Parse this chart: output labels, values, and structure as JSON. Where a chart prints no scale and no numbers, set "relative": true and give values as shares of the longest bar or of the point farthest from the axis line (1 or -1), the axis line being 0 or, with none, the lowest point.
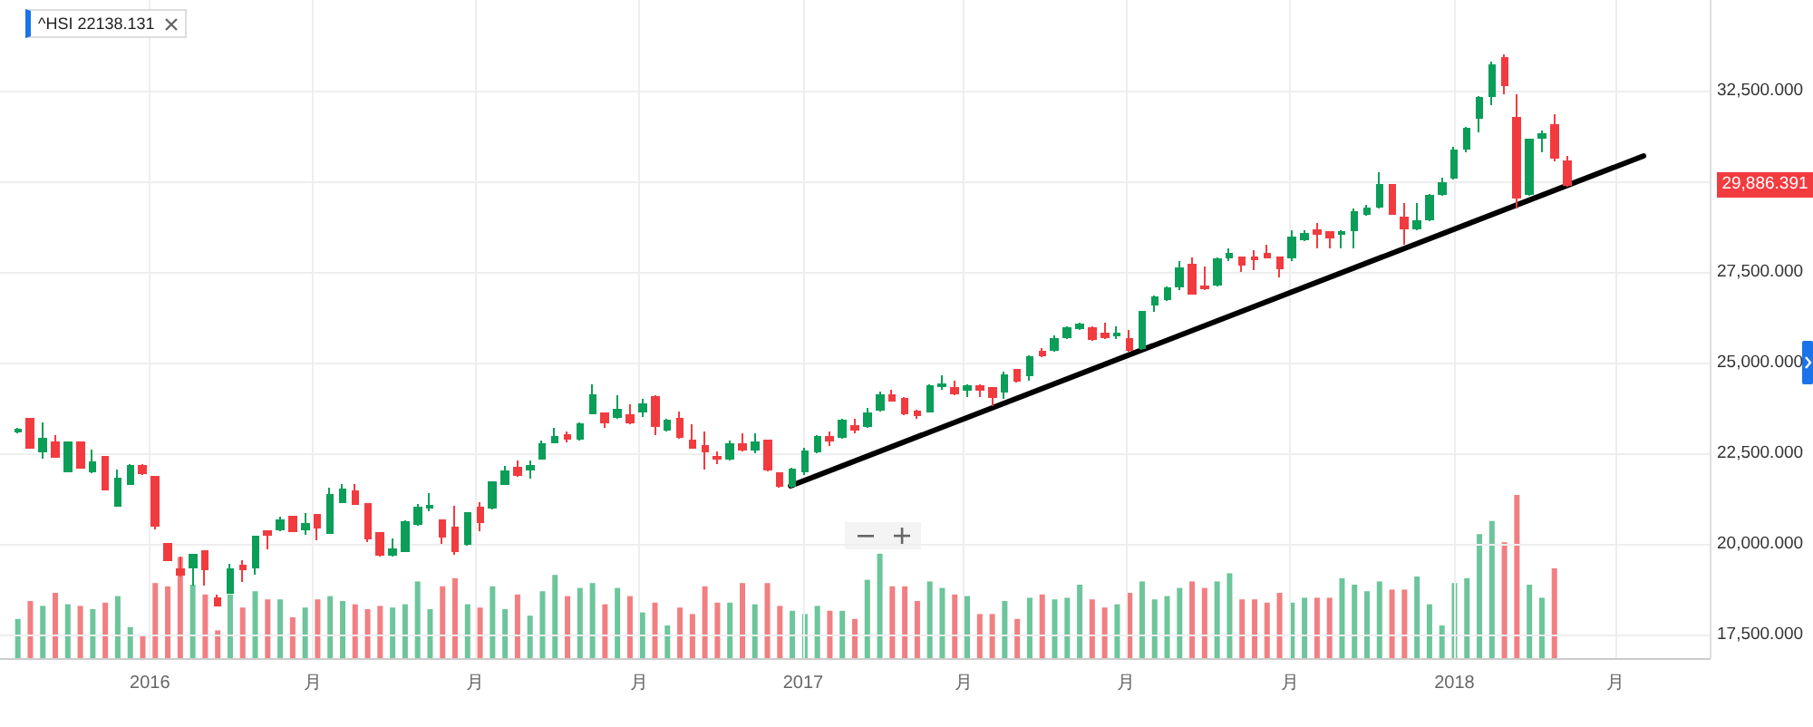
{
  "chart_data": [
    {
      "type": "candlestick",
      "x": [
        "2015-10-19",
        "2015-10-26",
        "2015-11-02",
        "2015-11-09",
        "2015-11-16",
        "2015-11-23",
        "2015-11-30",
        "2015-12-07",
        "2015-12-14",
        "2015-12-21",
        "2015-12-28",
        "2016-01-04",
        "2016-01-11",
        "2016-01-18",
        "2016-01-25",
        "2016-02-01",
        "2016-02-08",
        "2016-02-15",
        "2016-02-22",
        "2016-02-29",
        "2016-03-07",
        "2016-03-14",
        "2016-03-21",
        "2016-03-28",
        "2016-04-04",
        "2016-04-11",
        "2016-04-18",
        "2016-04-25",
        "2016-05-02",
        "2016-05-09",
        "2016-05-16",
        "2016-05-23",
        "2016-05-30",
        "2016-06-06",
        "2016-06-13",
        "2016-06-20",
        "2016-06-27",
        "2016-07-04",
        "2016-07-11",
        "2016-07-18",
        "2016-07-25",
        "2016-08-01",
        "2016-08-08",
        "2016-08-15",
        "2016-08-22",
        "2016-08-29",
        "2016-09-05",
        "2016-09-12",
        "2016-09-19",
        "2016-09-26",
        "2016-10-03",
        "2016-10-10",
        "2016-10-17",
        "2016-10-24",
        "2016-10-31",
        "2016-11-07",
        "2016-11-14",
        "2016-11-21",
        "2016-11-28",
        "2016-12-05",
        "2016-12-12",
        "2016-12-19",
        "2016-12-26",
        "2017-01-02",
        "2017-01-09",
        "2017-01-16",
        "2017-01-23",
        "2017-01-30",
        "2017-02-06",
        "2017-02-13",
        "2017-02-20",
        "2017-02-27",
        "2017-03-06",
        "2017-03-13",
        "2017-03-20",
        "2017-03-27",
        "2017-04-03",
        "2017-04-10",
        "2017-04-17",
        "2017-04-24",
        "2017-05-01",
        "2017-05-08",
        "2017-05-15",
        "2017-05-22",
        "2017-05-29",
        "2017-06-05",
        "2017-06-12",
        "2017-06-19",
        "2017-06-26",
        "2017-07-03",
        "2017-07-10",
        "2017-07-17",
        "2017-07-24",
        "2017-07-31",
        "2017-08-07",
        "2017-08-14",
        "2017-08-21",
        "2017-08-28",
        "2017-09-04",
        "2017-09-11",
        "2017-09-18",
        "2017-09-25",
        "2017-10-02",
        "2017-10-09",
        "2017-10-16",
        "2017-10-23",
        "2017-10-30",
        "2017-11-06",
        "2017-11-13",
        "2017-11-20",
        "2017-11-27",
        "2017-12-04",
        "2017-12-11",
        "2017-12-18",
        "2017-12-25",
        "2018-01-01",
        "2018-01-08",
        "2018-01-15",
        "2018-01-22",
        "2018-01-29",
        "2018-02-05",
        "2018-02-12",
        "2018-02-19",
        "2018-02-26",
        "2018-03-05"
      ],
      "ohlc": [
        [
          23100,
          23200,
          23050,
          23150
        ],
        [
          23450,
          23450,
          22650,
          22650
        ],
        [
          22550,
          23350,
          22350,
          22900
        ],
        [
          22800,
          23000,
          22400,
          22400
        ],
        [
          22000,
          22800,
          22000,
          22800
        ],
        [
          22800,
          22800,
          22100,
          22100
        ],
        [
          22000,
          22600,
          21950,
          22250
        ],
        [
          22400,
          22400,
          21500,
          21500
        ],
        [
          21050,
          22050,
          21050,
          21800
        ],
        [
          21650,
          22200,
          21650,
          22150
        ],
        [
          22150,
          22200,
          21900,
          21950
        ],
        [
          21850,
          21850,
          20400,
          20500
        ],
        [
          20000,
          20000,
          19550,
          19550
        ],
        [
          19300,
          19650,
          19100,
          19150
        ],
        [
          19350,
          19700,
          18850,
          19700
        ],
        [
          19800,
          19800,
          18850,
          19300
        ],
        [
          18500,
          18600,
          18300,
          18300
        ],
        [
          18650,
          19450,
          18650,
          19300
        ],
        [
          19400,
          19550,
          18950,
          19300
        ],
        [
          19350,
          20200,
          19150,
          20200
        ],
        [
          20350,
          20350,
          19850,
          20250
        ],
        [
          20400,
          20750,
          20350,
          20650
        ],
        [
          20750,
          20750,
          20350,
          20350
        ],
        [
          20400,
          20850,
          20250,
          20550
        ],
        [
          20800,
          20800,
          20100,
          20450
        ],
        [
          20300,
          21550,
          20300,
          21350
        ],
        [
          21150,
          21650,
          21150,
          21500
        ],
        [
          21450,
          21650,
          21100,
          21100
        ],
        [
          21100,
          21100,
          20050,
          20150
        ],
        [
          20300,
          20300,
          19650,
          19700
        ],
        [
          19700,
          20150,
          19650,
          19850
        ],
        [
          19800,
          20650,
          19800,
          20600
        ],
        [
          20550,
          21100,
          20500,
          21000
        ],
        [
          21000,
          21400,
          20900,
          21050
        ],
        [
          20650,
          20650,
          20000,
          20200
        ],
        [
          20450,
          21050,
          19700,
          19800
        ],
        [
          20000,
          20850,
          19950,
          20850
        ],
        [
          21000,
          21150,
          20350,
          20600
        ],
        [
          21000,
          21700,
          20950,
          21700
        ],
        [
          21650,
          22150,
          21650,
          22000
        ],
        [
          22100,
          22300,
          21850,
          21900
        ],
        [
          22050,
          22300,
          21800,
          22150
        ],
        [
          22350,
          22850,
          22350,
          22750
        ],
        [
          22800,
          23200,
          22800,
          22950
        ],
        [
          23000,
          23100,
          22800,
          22900
        ],
        [
          22900,
          23350,
          22850,
          23300
        ],
        [
          23600,
          24400,
          23600,
          24100
        ],
        [
          23600,
          23600,
          23200,
          23350
        ],
        [
          23500,
          24100,
          23450,
          23700
        ],
        [
          23550,
          23850,
          23300,
          23350
        ],
        [
          23650,
          24000,
          23500,
          23850
        ],
        [
          24050,
          24100,
          23000,
          23250
        ],
        [
          23150,
          23450,
          23100,
          23400
        ],
        [
          23450,
          23650,
          22900,
          22950
        ],
        [
          22850,
          23300,
          22650,
          22650
        ],
        [
          22700,
          23100,
          22050,
          22550
        ],
        [
          22400,
          22550,
          22200,
          22350
        ],
        [
          22350,
          22850,
          22300,
          22750
        ],
        [
          22750,
          23050,
          22550,
          22600
        ],
        [
          22600,
          23050,
          22500,
          22800
        ],
        [
          22850,
          22850,
          22000,
          22050
        ],
        [
          21950,
          21950,
          21550,
          21600
        ],
        [
          21600,
          22100,
          21550,
          22050
        ],
        [
          22000,
          22650,
          21900,
          22550
        ],
        [
          22550,
          23000,
          22500,
          22950
        ],
        [
          22950,
          23100,
          22700,
          22850
        ],
        [
          22950,
          23450,
          22900,
          23400
        ],
        [
          23250,
          23450,
          23050,
          23150
        ],
        [
          23250,
          23750,
          23200,
          23600
        ],
        [
          23700,
          24200,
          23650,
          24100
        ],
        [
          24100,
          24250,
          23950,
          23950
        ],
        [
          24000,
          24050,
          23550,
          23600
        ],
        [
          23650,
          23700,
          23450,
          23550
        ],
        [
          23650,
          24400,
          23650,
          24350
        ],
        [
          24350,
          24650,
          24250,
          24400
        ],
        [
          24300,
          24500,
          24100,
          24150
        ],
        [
          24250,
          24400,
          24050,
          24350
        ],
        [
          24350,
          24400,
          24050,
          24250
        ],
        [
          24300,
          24300,
          23800,
          24050
        ],
        [
          24200,
          24750,
          24000,
          24650
        ],
        [
          24800,
          24800,
          24450,
          24500
        ],
        [
          24650,
          25200,
          24500,
          25150
        ],
        [
          25300,
          25400,
          25150,
          25200
        ],
        [
          25350,
          25750,
          25300,
          25650
        ],
        [
          25700,
          26000,
          25650,
          25950
        ],
        [
          25950,
          26100,
          25900,
          26050
        ],
        [
          25950,
          26000,
          25600,
          25650
        ],
        [
          25800,
          26100,
          25650,
          25700
        ],
        [
          25750,
          26000,
          25650,
          25800
        ],
        [
          25650,
          25900,
          25300,
          25350
        ],
        [
          25400,
          26400,
          25350,
          26400
        ],
        [
          26600,
          26850,
          26400,
          26800
        ],
        [
          26750,
          27100,
          26700,
          27050
        ],
        [
          27100,
          27800,
          27000,
          27600
        ],
        [
          27700,
          27900,
          26900,
          26900
        ],
        [
          27100,
          27650,
          27000,
          27050
        ],
        [
          27150,
          27900,
          27100,
          27850
        ],
        [
          27900,
          28150,
          27800,
          28000
        ],
        [
          27900,
          27900,
          27500,
          27700
        ],
        [
          27900,
          28100,
          27550,
          27850
        ],
        [
          28000,
          28250,
          27900,
          27900
        ],
        [
          27900,
          27900,
          27350,
          27600
        ],
        [
          27900,
          28650,
          27800,
          28450
        ],
        [
          28400,
          28650,
          28350,
          28550
        ],
        [
          28650,
          28850,
          28150,
          28550
        ],
        [
          28600,
          28600,
          28150,
          28450
        ],
        [
          28550,
          28650,
          28150,
          28600
        ],
        [
          28650,
          29250,
          28150,
          29150
        ],
        [
          29100,
          29350,
          29050,
          29250
        ],
        [
          29300,
          30250,
          29250,
          29900
        ],
        [
          29900,
          29900,
          29100,
          29100
        ],
        [
          29000,
          29400,
          28250,
          28700
        ],
        [
          28700,
          29400,
          28650,
          28900
        ],
        [
          28950,
          29650,
          28900,
          29600
        ],
        [
          29650,
          30100,
          29600,
          29950
        ],
        [
          30100,
          30950,
          30050,
          30850
        ],
        [
          30900,
          31500,
          30800,
          31450
        ],
        [
          31750,
          32350,
          31350,
          32300
        ],
        [
          32350,
          33300,
          32100,
          33200
        ],
        [
          33400,
          33500,
          32400,
          32650
        ],
        [
          31750,
          32400,
          29250,
          29550
        ],
        [
          29650,
          31150,
          29600,
          31150
        ],
        [
          31200,
          31400,
          30800,
          31300
        ],
        [
          31550,
          31850,
          30550,
          30650
        ],
        [
          30550,
          30700,
          29850,
          29900
        ]
      ],
      "colors": [
        "#0a9e58",
        "#f23b3f",
        "#0a9e58",
        "#f23b3f",
        "#0a9e58",
        "#f23b3f",
        "#0a9e58",
        "#f23b3f",
        "#0a9e58",
        "#0a9e58",
        "#f23b3f",
        "#f23b3f",
        "#f23b3f",
        "#f23b3f",
        "#0a9e58",
        "#f23b3f",
        "#f23b3f",
        "#0a9e58",
        "#f23b3f",
        "#0a9e58",
        "#f23b3f",
        "#0a9e58",
        "#f23b3f",
        "#0a9e58",
        "#f23b3f",
        "#0a9e58",
        "#0a9e58",
        "#f23b3f",
        "#f23b3f",
        "#f23b3f",
        "#0a9e58",
        "#0a9e58",
        "#0a9e58",
        "#0a9e58",
        "#f23b3f",
        "#f23b3f",
        "#0a9e58",
        "#f23b3f",
        "#0a9e58",
        "#0a9e58",
        "#f23b3f",
        "#0a9e58",
        "#0a9e58",
        "#0a9e58",
        "#f23b3f",
        "#0a9e58",
        "#0a9e58",
        "#f23b3f",
        "#0a9e58",
        "#f23b3f",
        "#0a9e58",
        "#f23b3f",
        "#0a9e58",
        "#f23b3f",
        "#f23b3f",
        "#f23b3f",
        "#f23b3f",
        "#0a9e58",
        "#f23b3f",
        "#0a9e58",
        "#f23b3f",
        "#f23b3f",
        "#0a9e58",
        "#0a9e58",
        "#0a9e58",
        "#f23b3f",
        "#0a9e58",
        "#f23b3f",
        "#0a9e58",
        "#0a9e58",
        "#f23b3f",
        "#f23b3f",
        "#f23b3f",
        "#0a9e58",
        "#0a9e58",
        "#f23b3f",
        "#0a9e58",
        "#f23b3f",
        "#f23b3f",
        "#0a9e58",
        "#f23b3f",
        "#0a9e58",
        "#f23b3f",
        "#0a9e58",
        "#0a9e58",
        "#0a9e58",
        "#f23b3f",
        "#f23b3f",
        "#0a9e58",
        "#f23b3f",
        "#0a9e58",
        "#0a9e58",
        "#0a9e58",
        "#0a9e58",
        "#f23b3f",
        "#f23b3f",
        "#0a9e58",
        "#0a9e58",
        "#f23b3f",
        "#f23b3f",
        "#f23b3f",
        "#f23b3f",
        "#0a9e58",
        "#0a9e58",
        "#f23b3f",
        "#f23b3f",
        "#0a9e58",
        "#0a9e58",
        "#0a9e58",
        "#0a9e58",
        "#f23b3f",
        "#f23b3f",
        "#0a9e58",
        "#0a9e58",
        "#0a9e58",
        "#0a9e58",
        "#0a9e58",
        "#0a9e58",
        "#0a9e58",
        "#f23b3f",
        "#f23b3f",
        "#0a9e58",
        "#0a9e58",
        "#f23b3f",
        "#f23b3f"
      ],
      "series": [
        {
          "type": "line",
          "x": [
            "2016-12-25",
            "2018-04-17"
          ],
          "values": [
            21600,
            30700
          ],
          "color": "#000000"
        }
      ],
      "xlim": [
        "2015-10-09",
        "2018-05-24"
      ],
      "xticks": [
        {
          "value": "2016-01-01",
          "label": "2016"
        },
        {
          "value": "2016-04-01",
          "label": "月"
        },
        {
          "value": "2016-07-01",
          "label": "月"
        },
        {
          "value": "2016-10-01",
          "label": "月"
        },
        {
          "value": "2017-01-01",
          "label": "2017"
        },
        {
          "value": "2017-04-01",
          "label": "月"
        },
        {
          "value": "2017-07-01",
          "label": "月"
        },
        {
          "value": "2017-10-01",
          "label": "月"
        },
        {
          "value": "2018-01-01",
          "label": "2018"
        },
        {
          "value": "2018-04-01",
          "label": "月"
        }
      ],
      "ylim": [
        16850,
        35000
      ],
      "yticks": [
        {
          "value": 17500,
          "label": "17,500.000"
        },
        {
          "value": 20000,
          "label": "20,000.000"
        },
        {
          "value": 22500,
          "label": "22,500.000"
        },
        {
          "value": 25000,
          "label": "25,000.000"
        },
        {
          "value": 27500,
          "label": "27,500.000"
        },
        {
          "value": 30000,
          "label": null
        },
        {
          "value": 32500,
          "label": "32,500.000"
        }
      ],
      "grid": true,
      "annotations": [
        "^HSI 22138.131",
        "29,886.391"
      ]
    },
    {
      "type": "bar",
      "x": [
        "2015-10-19",
        "2015-10-26",
        "2015-11-02",
        "2015-11-09",
        "2015-11-16",
        "2015-11-23",
        "2015-11-30",
        "2015-12-07",
        "2015-12-14",
        "2015-12-21",
        "2015-12-28",
        "2016-01-04",
        "2016-01-11",
        "2016-01-18",
        "2016-01-25",
        "2016-02-01",
        "2016-02-08",
        "2016-02-15",
        "2016-02-22",
        "2016-02-29",
        "2016-03-07",
        "2016-03-14",
        "2016-03-21",
        "2016-03-28",
        "2016-04-04",
        "2016-04-11",
        "2016-04-18",
        "2016-04-25",
        "2016-05-02",
        "2016-05-09",
        "2016-05-16",
        "2016-05-23",
        "2016-05-30",
        "2016-06-06",
        "2016-06-13",
        "2016-06-20",
        "2016-06-27",
        "2016-07-04",
        "2016-07-11",
        "2016-07-18",
        "2016-07-25",
        "2016-08-01",
        "2016-08-08",
        "2016-08-15",
        "2016-08-22",
        "2016-08-29",
        "2016-09-05",
        "2016-09-12",
        "2016-09-19",
        "2016-09-26",
        "2016-10-03",
        "2016-10-10",
        "2016-10-17",
        "2016-10-24",
        "2016-10-31",
        "2016-11-07",
        "2016-11-14",
        "2016-11-21",
        "2016-11-28",
        "2016-12-05",
        "2016-12-12",
        "2016-12-19",
        "2016-12-26",
        "2017-01-02",
        "2017-01-09",
        "2017-01-16",
        "2017-01-23",
        "2017-01-30",
        "2017-02-06",
        "2017-02-13",
        "2017-02-20",
        "2017-02-27",
        "2017-03-06",
        "2017-03-13",
        "2017-03-20",
        "2017-03-27",
        "2017-04-03",
        "2017-04-10",
        "2017-04-17",
        "2017-04-24",
        "2017-05-01",
        "2017-05-08",
        "2017-05-15",
        "2017-05-22",
        "2017-05-29",
        "2017-06-05",
        "2017-06-12",
        "2017-06-19",
        "2017-06-26",
        "2017-07-03",
        "2017-07-10",
        "2017-07-17",
        "2017-07-24",
        "2017-07-31",
        "2017-08-07",
        "2017-08-14",
        "2017-08-21",
        "2017-08-28",
        "2017-09-04",
        "2017-09-11",
        "2017-09-18",
        "2017-09-25",
        "2017-10-02",
        "2017-10-09",
        "2017-10-16",
        "2017-10-23",
        "2017-10-30",
        "2017-11-06",
        "2017-11-13",
        "2017-11-20",
        "2017-11-27",
        "2017-12-04",
        "2017-12-11",
        "2017-12-18",
        "2017-12-25",
        "2018-01-01",
        "2018-01-08",
        "2018-01-15",
        "2018-01-22",
        "2018-01-29",
        "2018-02-05",
        "2018-02-12",
        "2018-02-19",
        "2018-02-26"
      ],
      "values": [
        0.24,
        0.35,
        0.32,
        0.4,
        0.33,
        0.32,
        0.3,
        0.34,
        0.38,
        0.19,
        0.14,
        0.46,
        0.44,
        0.62,
        0.45,
        0.39,
        0.17,
        0.39,
        0.31,
        0.41,
        0.36,
        0.36,
        0.25,
        0.31,
        0.36,
        0.38,
        0.35,
        0.33,
        0.3,
        0.32,
        0.31,
        0.33,
        0.47,
        0.3,
        0.44,
        0.49,
        0.33,
        0.31,
        0.44,
        0.3,
        0.39,
        0.26,
        0.41,
        0.51,
        0.38,
        0.43,
        0.46,
        0.33,
        0.43,
        0.38,
        0.28,
        0.34,
        0.2,
        0.31,
        0.27,
        0.44,
        0.34,
        0.34,
        0.46,
        0.33,
        0.46,
        0.32,
        0.29,
        0.27,
        0.32,
        0.29,
        0.29,
        0.24,
        0.48,
        0.64,
        0.44,
        0.44,
        0.35,
        0.47,
        0.43,
        0.39,
        0.38,
        0.27,
        0.27,
        0.35,
        0.24,
        0.37,
        0.39,
        0.36,
        0.37,
        0.45,
        0.36,
        0.31,
        0.33,
        0.4,
        0.47,
        0.36,
        0.38,
        0.43,
        0.47,
        0.43,
        0.47,
        0.52,
        0.36,
        0.36,
        0.34,
        0.4,
        0.34,
        0.37,
        0.37,
        0.37,
        0.49,
        0.45,
        0.41,
        0.47,
        0.42,
        0.42,
        0.5,
        0.33,
        0.2,
        0.46,
        0.49,
        0.76,
        0.84,
        0.71,
        1.0,
        0.45,
        0.37,
        0.55
      ],
      "colors": [
        "#6cc59b",
        "#f17f82",
        "#6cc59b",
        "#f17f82",
        "#6cc59b",
        "#f17f82",
        "#6cc59b",
        "#f17f82",
        "#6cc59b",
        "#6cc59b",
        "#f17f82",
        "#f17f82",
        "#f17f82",
        "#f17f82",
        "#6cc59b",
        "#f17f82",
        "#f17f82",
        "#6cc59b",
        "#f17f82",
        "#6cc59b",
        "#f17f82",
        "#6cc59b",
        "#f17f82",
        "#6cc59b",
        "#f17f82",
        "#6cc59b",
        "#6cc59b",
        "#f17f82",
        "#f17f82",
        "#f17f82",
        "#6cc59b",
        "#6cc59b",
        "#6cc59b",
        "#6cc59b",
        "#f17f82",
        "#f17f82",
        "#6cc59b",
        "#f17f82",
        "#6cc59b",
        "#6cc59b",
        "#f17f82",
        "#6cc59b",
        "#6cc59b",
        "#6cc59b",
        "#f17f82",
        "#6cc59b",
        "#6cc59b",
        "#f17f82",
        "#6cc59b",
        "#f17f82",
        "#6cc59b",
        "#f17f82",
        "#6cc59b",
        "#f17f82",
        "#f17f82",
        "#f17f82",
        "#f17f82",
        "#6cc59b",
        "#f17f82",
        "#6cc59b",
        "#f17f82",
        "#f17f82",
        "#6cc59b",
        "#6cc59b",
        "#6cc59b",
        "#f17f82",
        "#6cc59b",
        "#f17f82",
        "#6cc59b",
        "#6cc59b",
        "#f17f82",
        "#f17f82",
        "#f17f82",
        "#6cc59b",
        "#6cc59b",
        "#f17f82",
        "#6cc59b",
        "#f17f82",
        "#f17f82",
        "#6cc59b",
        "#f17f82",
        "#6cc59b",
        "#f17f82",
        "#6cc59b",
        "#6cc59b",
        "#6cc59b",
        "#f17f82",
        "#f17f82",
        "#6cc59b",
        "#f17f82",
        "#6cc59b",
        "#6cc59b",
        "#6cc59b",
        "#6cc59b",
        "#f17f82",
        "#f17f82",
        "#6cc59b",
        "#6cc59b",
        "#f17f82",
        "#f17f82",
        "#f17f82",
        "#f17f82",
        "#6cc59b",
        "#6cc59b",
        "#f17f82",
        "#f17f82",
        "#6cc59b",
        "#6cc59b",
        "#6cc59b",
        "#6cc59b",
        "#f17f82",
        "#f17f82",
        "#6cc59b",
        "#6cc59b",
        "#6cc59b",
        "#6cc59b",
        "#6cc59b",
        "#6cc59b",
        "#6cc59b",
        "#f17f82",
        "#f17f82",
        "#6cc59b",
        "#6cc59b",
        "#f17f82"
      ],
      "relative": true,
      "xlim": [
        "2015-10-09",
        "2018-05-24"
      ]
    }
  ]
}
